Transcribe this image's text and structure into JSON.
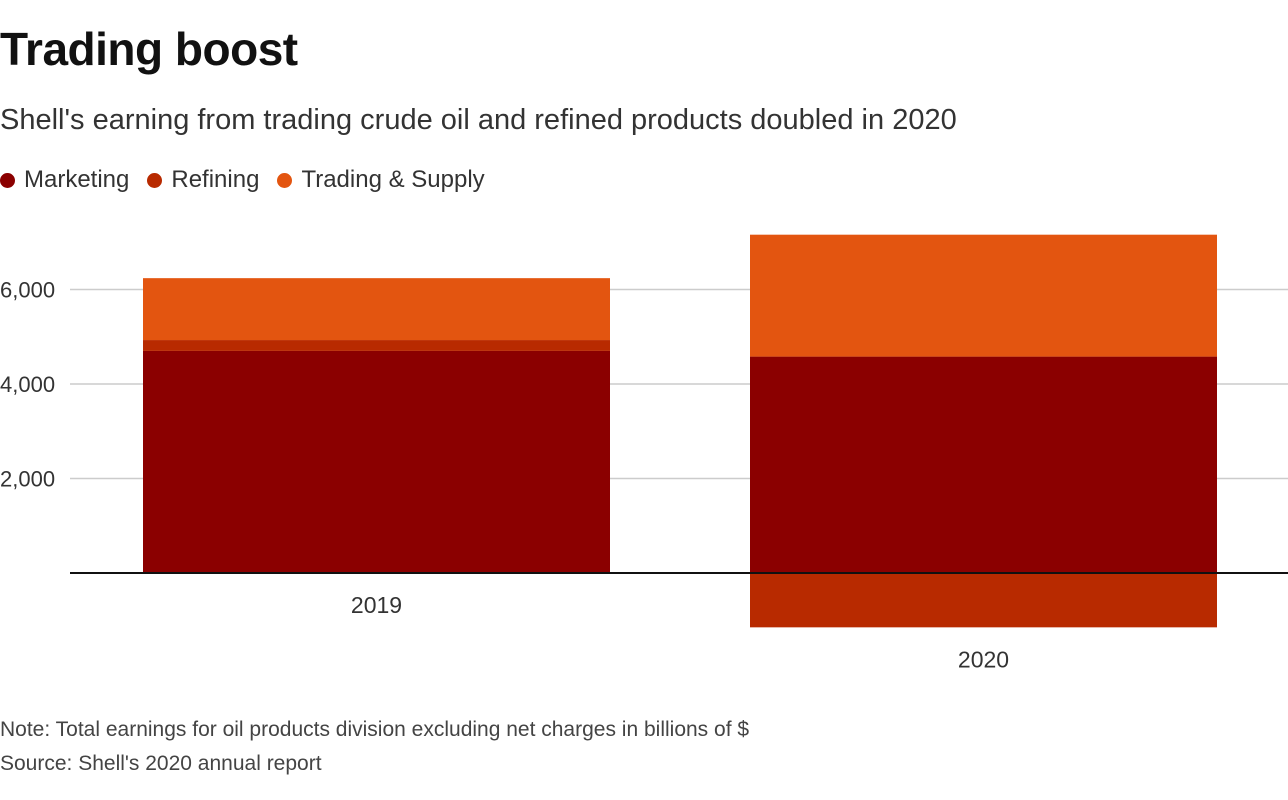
{
  "header": {
    "title": "Trading boost",
    "subtitle": "Shell's earning from trading crude oil and refined products doubled in 2020"
  },
  "footer": {
    "note": "Note: Total earnings for oil products division excluding net charges in billions of $",
    "source": "Source: Shell's 2020 annual report"
  },
  "colors": {
    "marketing": "#8b0000",
    "refining": "#b82a00",
    "trading": "#e35510",
    "gridline": "#cccccc",
    "baseline": "#111111"
  },
  "chart_data": {
    "type": "bar",
    "stacked": true,
    "categories": [
      "2019",
      "2020"
    ],
    "series": [
      {
        "name": "Marketing",
        "values": [
          4700,
          4580
        ]
      },
      {
        "name": "Refining",
        "values": [
          230,
          -1150
        ]
      },
      {
        "name": "Trading & Supply",
        "values": [
          1310,
          2580
        ]
      }
    ],
    "title": "Trading boost",
    "subtitle": "Shell's earning from trading crude oil and refined products doubled in 2020",
    "xlabel": "",
    "ylabel": "",
    "yticks": [
      2000,
      4000,
      6000
    ],
    "ytick_labels": [
      "2,000",
      "4,000",
      "6,000"
    ],
    "ylim": [
      -1300,
      7500
    ],
    "grid": true,
    "legend_position": "top-left"
  }
}
